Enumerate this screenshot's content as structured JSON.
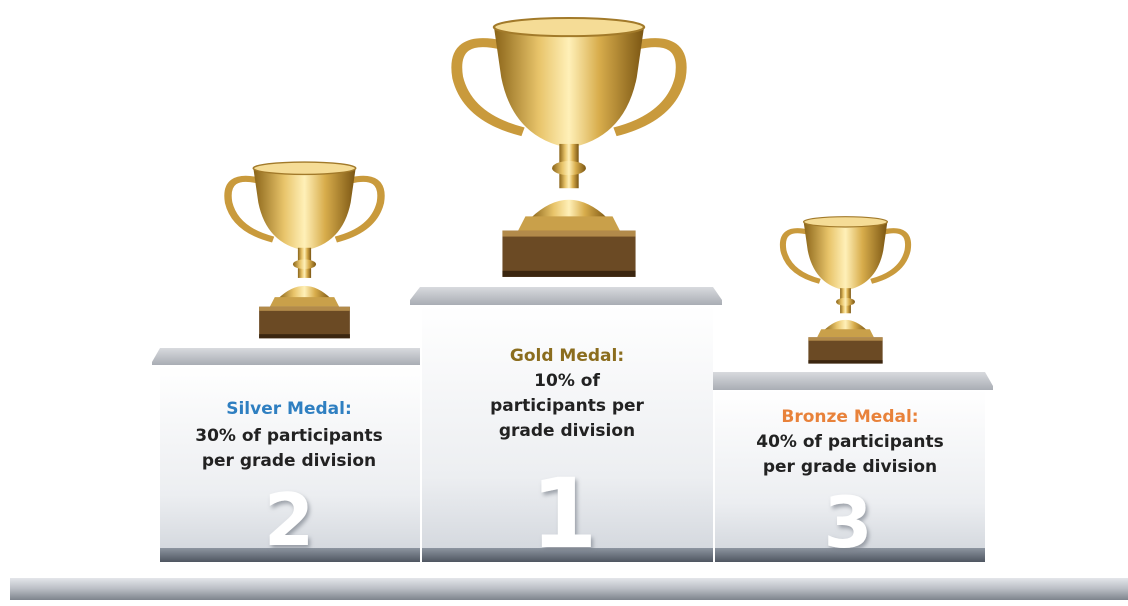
{
  "podiums": [
    {
      "title": "Silver Medal:",
      "lines": [
        "30% of participants",
        "per grade division"
      ],
      "rank": "2"
    },
    {
      "title": "Gold Medal:",
      "lines": [
        "10% of",
        "participants per",
        "grade division"
      ],
      "rank": "1"
    },
    {
      "title": "Bronze Medal:",
      "lines": [
        "40% of participants",
        "per grade division"
      ],
      "rank": "3"
    }
  ]
}
